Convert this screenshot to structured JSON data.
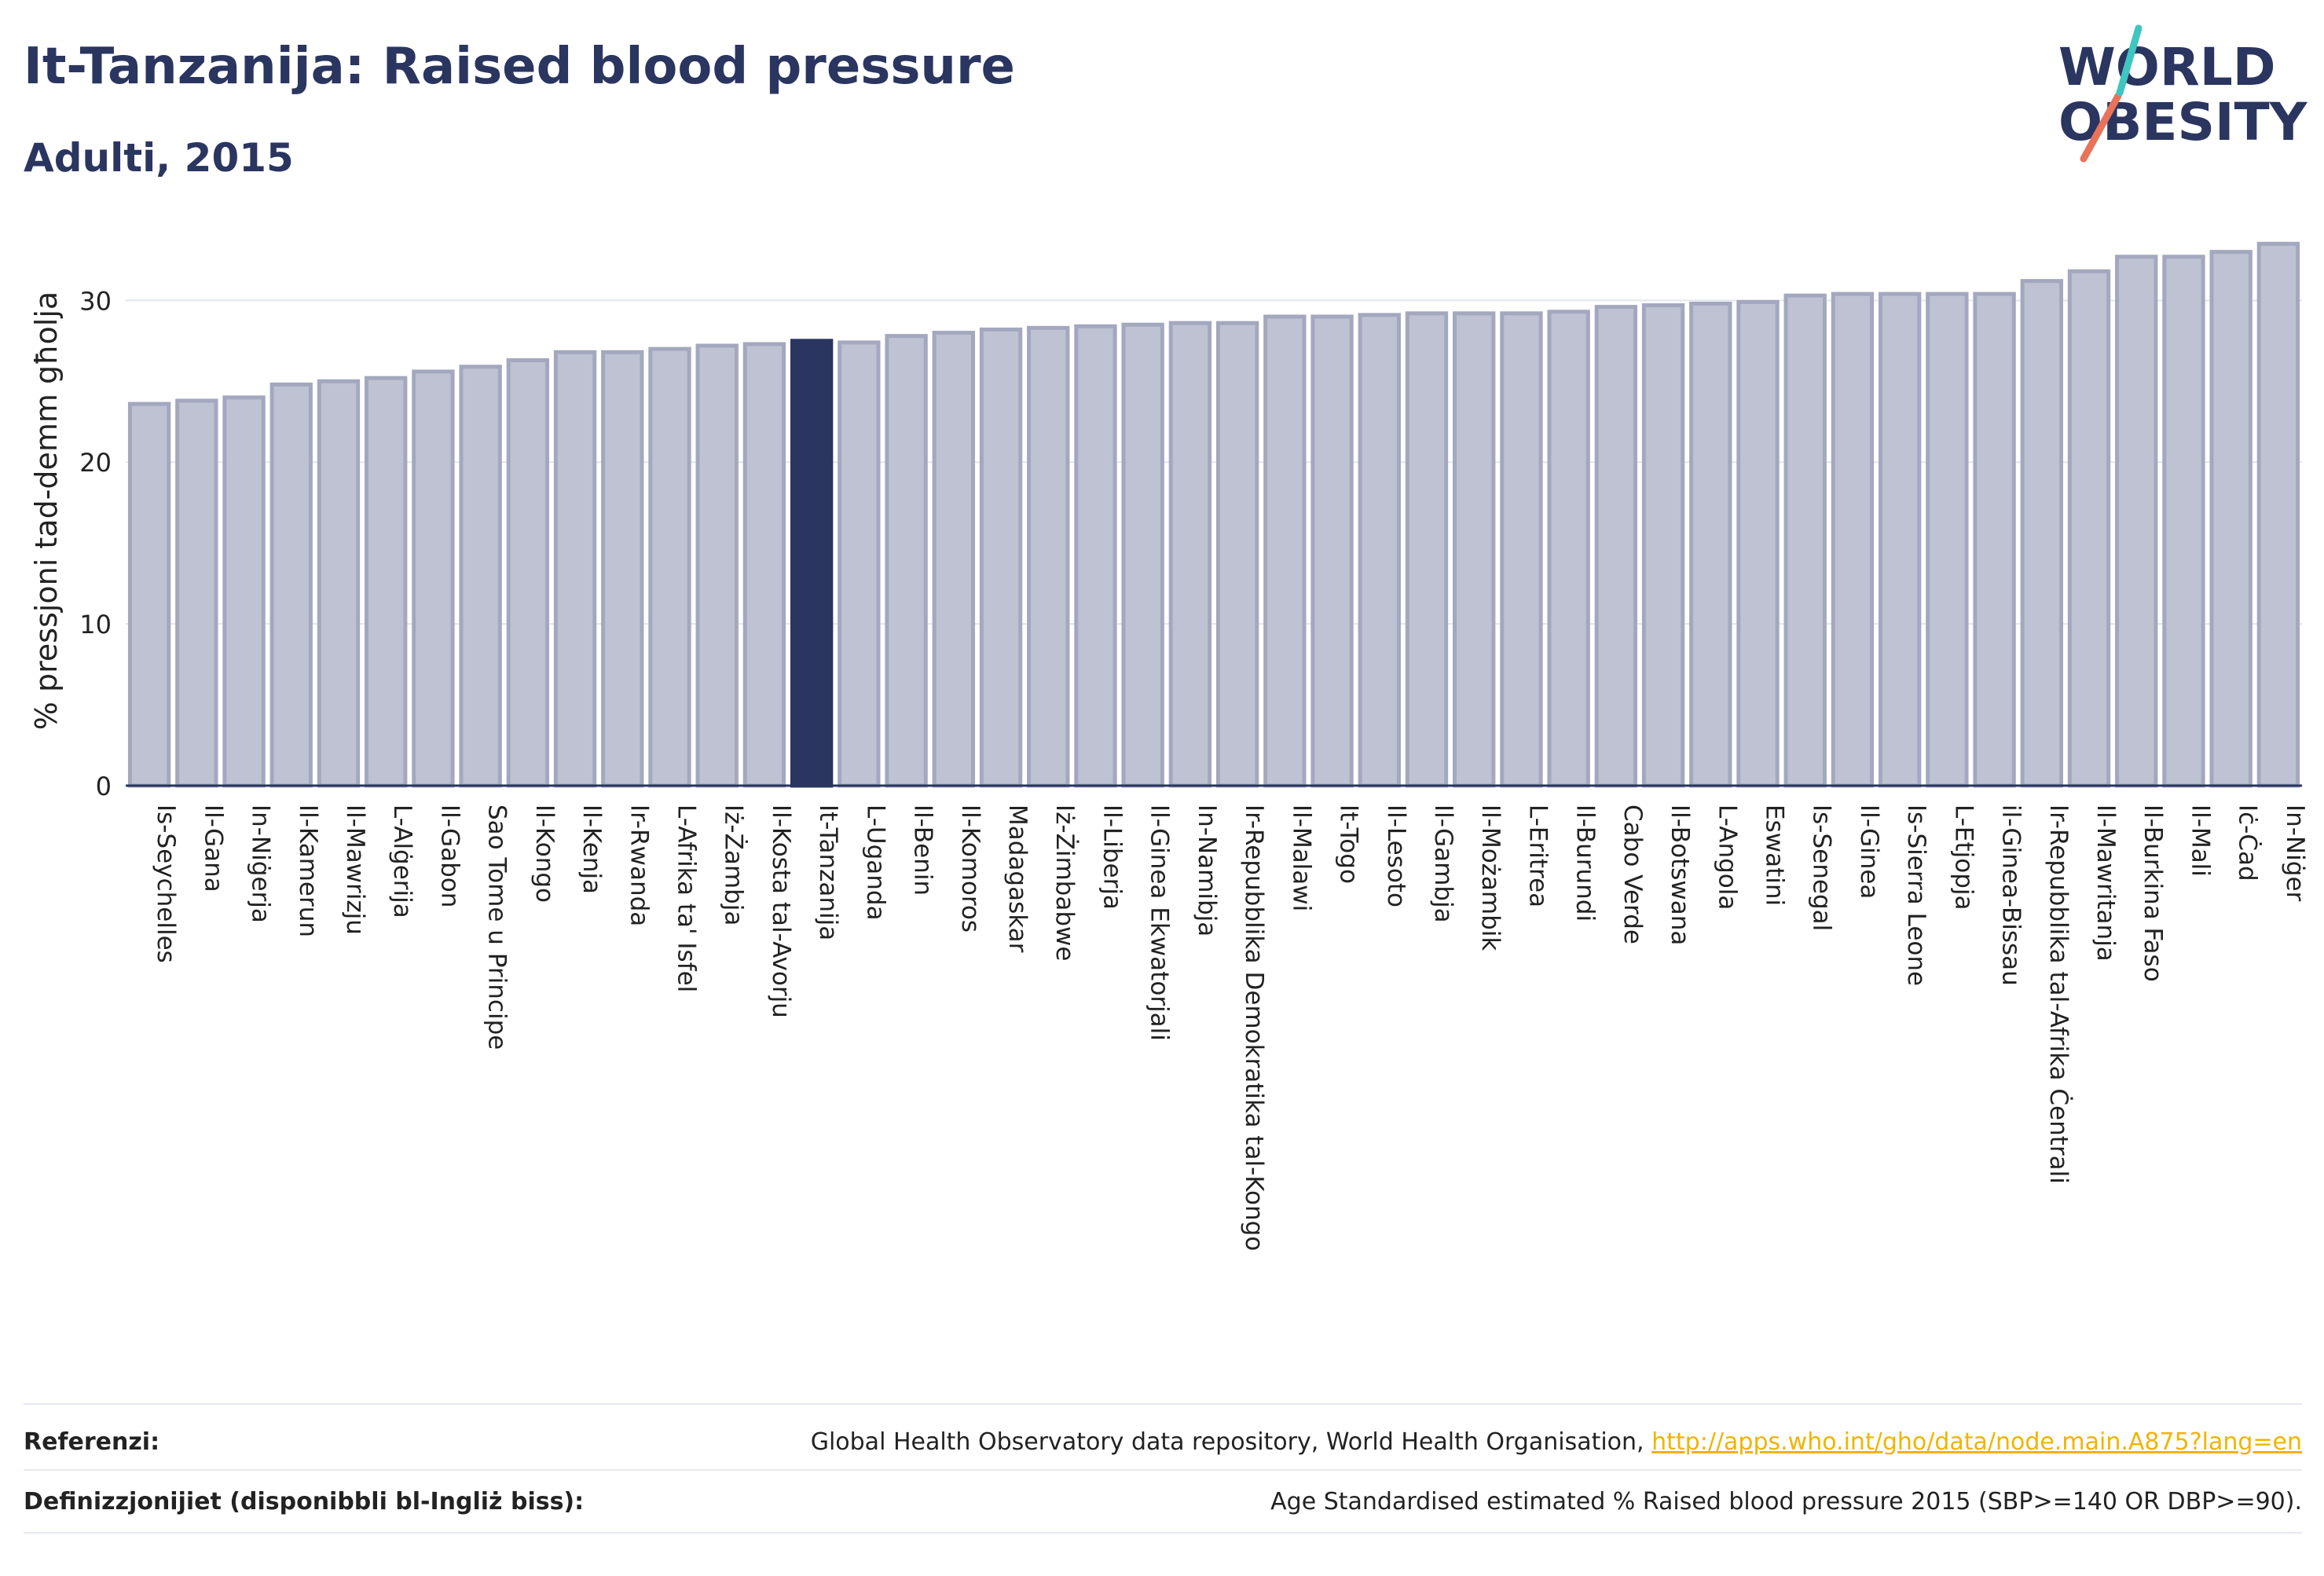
{
  "header": {
    "title": "It-Tanzanija: Raised blood pressure",
    "subtitle": "Adulti, 2015"
  },
  "logo": {
    "line1": "WORLD",
    "line2": "OBESITY"
  },
  "colors": {
    "bar": "#bec2d2",
    "bar_stroke": "#a3a8bf",
    "highlight": "#2a3560",
    "title": "#2a3560",
    "link": "#f0b400",
    "logo_slash_a": "#e8735a",
    "logo_slash_b": "#3ec6c0"
  },
  "chart_data": {
    "type": "bar",
    "ylabel": "% pressjoni tad-demm għolja",
    "ylim": [
      0,
      34
    ],
    "yticks": [
      0,
      10,
      20,
      30
    ],
    "grid": true,
    "highlight": "It-Tanzanija",
    "categories": [
      "Is-Seychelles",
      "Il-Gana",
      "In-Niġerja",
      "Il-Kamerun",
      "Il-Mawrizju",
      "L-Alġerija",
      "Il-Gabon",
      "Sao Tome u Principe",
      "Il-Kongo",
      "Il-Kenja",
      "Ir-Rwanda",
      "L-Afrika ta' Isfel",
      "Iż-Żambja",
      "Il-Kosta tal-Avorju",
      "It-Tanzanija",
      "L-Uganda",
      "Il-Benin",
      "Il-Komoros",
      "Madagaskar",
      "Iż-Żimbabwe",
      "Il-Liberja",
      "Il-Ginea Ekwatorjali",
      "In-Namibja",
      "Ir-Repubblika Demokratika tal-Kongo",
      "Il-Malawi",
      "It-Togo",
      "Il-Lesoto",
      "Il-Gambja",
      "Il-Możambik",
      "L-Eritrea",
      "Il-Burundi",
      "Cabo Verde",
      "Il-Botswana",
      "L-Angola",
      "Eswatini",
      "Is-Senegal",
      "Il-Ginea",
      "Is-Sierra Leone",
      "L-Etjopja",
      "il-Ginea-Bissau",
      "Ir-Repubblika tal-Afrika Ċentrali",
      "Il-Mawritanja",
      "Il-Burkina Faso",
      "Il-Mali",
      "Iċ-Ċad",
      "In-Niġer"
    ],
    "values": [
      23.6,
      23.8,
      24.0,
      24.8,
      25.0,
      25.2,
      25.6,
      25.9,
      26.3,
      26.8,
      26.8,
      27.0,
      27.2,
      27.3,
      27.5,
      27.4,
      27.8,
      28.0,
      28.2,
      28.3,
      28.4,
      28.5,
      28.6,
      28.6,
      29.0,
      29.0,
      29.1,
      29.2,
      29.2,
      29.2,
      29.3,
      29.6,
      29.7,
      29.8,
      29.9,
      30.3,
      30.4,
      30.4,
      30.4,
      30.4,
      31.2,
      31.8,
      32.7,
      32.7,
      33.0,
      33.5
    ]
  },
  "footer": {
    "references_label": "Referenzi:",
    "references_text": "Global Health Observatory data repository, World Health Organisation,",
    "references_link": "http://apps.who.int/gho/data/node.main.A875?lang=en",
    "definitions_label": "Definizzjonijiet (disponibbli bl-Ingliż biss):",
    "definitions_text": "Age Standardised estimated % Raised blood pressure 2015 (SBP>=140 OR DBP>=90)."
  }
}
